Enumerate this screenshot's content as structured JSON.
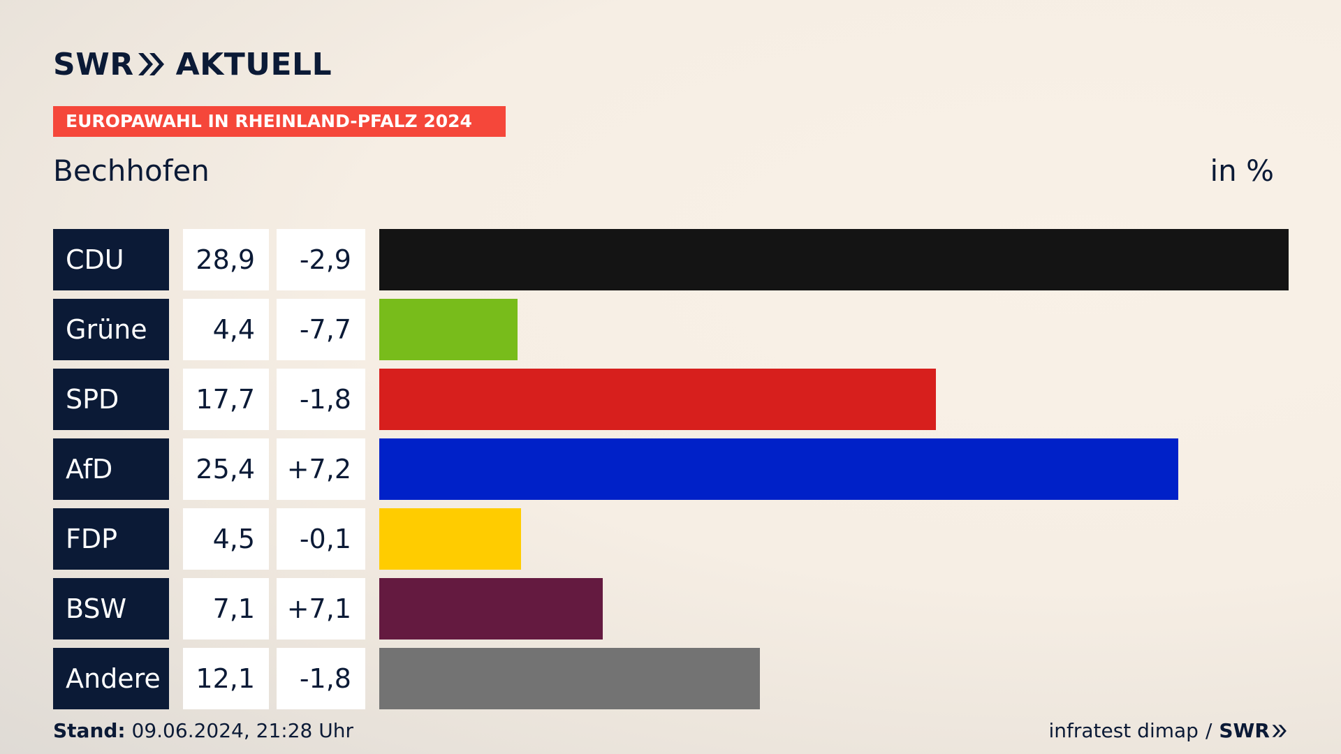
{
  "logo": {
    "brand": "SWR",
    "product": "AKTUELL"
  },
  "tag": "EUROPAWAHL IN RHEINLAND-PFALZ 2024",
  "place": "Bechhofen",
  "unit": "in %",
  "colors": {
    "navy": "#0b1a36",
    "accent": "#f5473a"
  },
  "chart_data": {
    "type": "bar",
    "orientation": "horizontal",
    "categories": [
      "CDU",
      "Grüne",
      "SPD",
      "AfD",
      "FDP",
      "BSW",
      "Andere"
    ],
    "values": [
      28.9,
      4.4,
      17.7,
      25.4,
      4.5,
      7.1,
      12.1
    ],
    "value_labels": [
      "28,9",
      "4,4",
      "17,7",
      "25,4",
      "4,5",
      "7,1",
      "12,1"
    ],
    "changes": [
      -2.9,
      -7.7,
      -1.8,
      7.2,
      -0.1,
      7.1,
      -1.8
    ],
    "change_labels": [
      "-2,9",
      "-7,7",
      "-1,8",
      "+7,2",
      "-0,1",
      "+7,1",
      "-1,8"
    ],
    "colors": [
      "#141414",
      "#78bc1b",
      "#d71f1d",
      "#0021c8",
      "#ffcc00",
      "#641a40",
      "#737373"
    ],
    "unit": "in %",
    "xlim": [
      0,
      28.9
    ]
  },
  "footer": {
    "stand_label": "Stand:",
    "stand_value": "09.06.2024, 21:28 Uhr",
    "source": "infratest dimap",
    "separator": "/",
    "source_logo": "SWR"
  }
}
